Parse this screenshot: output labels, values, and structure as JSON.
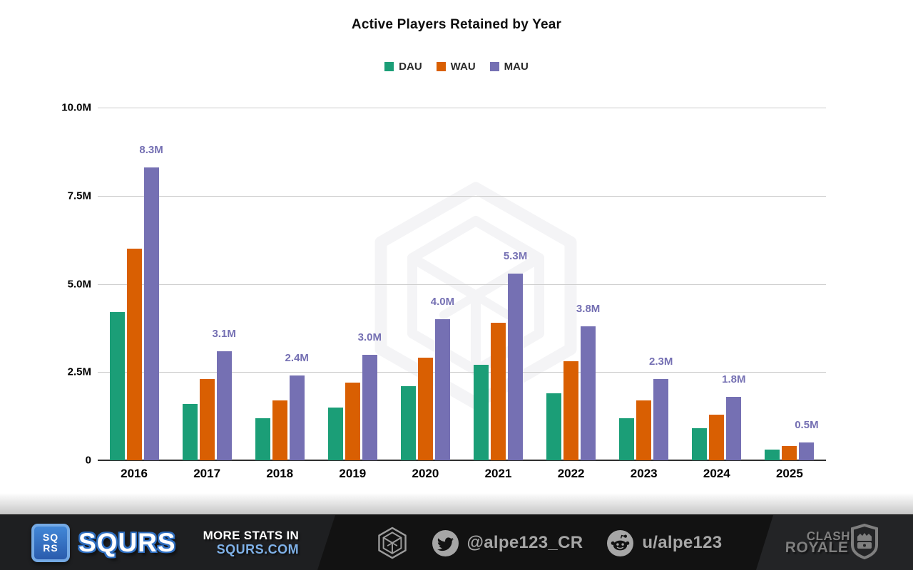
{
  "title": "Active Players Retained by Year",
  "legend": [
    {
      "label": "DAU",
      "color": "#1b9e77"
    },
    {
      "label": "WAU",
      "color": "#d95f02"
    },
    {
      "label": "MAU",
      "color": "#7570b3"
    }
  ],
  "chart_data": {
    "type": "bar",
    "title": "Active Players Retained by Year",
    "categories": [
      "2016",
      "2017",
      "2018",
      "2019",
      "2020",
      "2021",
      "2022",
      "2023",
      "2024",
      "2025"
    ],
    "series": [
      {
        "name": "DAU",
        "color": "#1b9e77",
        "values": [
          4.2,
          1.6,
          1.2,
          1.5,
          2.1,
          2.7,
          1.9,
          1.2,
          0.9,
          0.3
        ]
      },
      {
        "name": "WAU",
        "color": "#d95f02",
        "values": [
          6.0,
          2.3,
          1.7,
          2.2,
          2.9,
          3.9,
          2.8,
          1.7,
          1.3,
          0.4
        ]
      },
      {
        "name": "MAU",
        "color": "#7570b3",
        "values": [
          8.3,
          3.1,
          2.4,
          3.0,
          4.0,
          5.3,
          3.8,
          2.3,
          1.8,
          0.5
        ]
      }
    ],
    "mau_data_labels": [
      "8.3M",
      "3.1M",
      "2.4M",
      "3.0M",
      "4.0M",
      "5.3M",
      "3.8M",
      "2.3M",
      "1.8M",
      "0.5M"
    ],
    "unit": "millions",
    "ylim": [
      0,
      10
    ],
    "y_ticks": [
      {
        "label": "10.0M",
        "value": 10
      },
      {
        "label": "7.5M",
        "value": 7.5
      },
      {
        "label": "5.0M",
        "value": 5
      },
      {
        "label": "2.5M",
        "value": 2.5
      },
      {
        "label": "0",
        "value": 0
      }
    ],
    "grid": true,
    "legend_position": "top",
    "data_label_color": "#7570b3"
  },
  "footer": {
    "squrs_badge_line1": "SQ",
    "squrs_badge_line2": "RS",
    "squrs_wordmark": "SQURS",
    "more_stats_line1": "MORE STATS IN",
    "more_stats_line2": "SQURS.COM",
    "twitter_handle": "@alpe123_CR",
    "reddit_handle": "u/alpe123",
    "clash_line1": "CLASH",
    "clash_line2": "ROYALE"
  },
  "colors": {
    "dau": "#1b9e77",
    "wau": "#d95f02",
    "mau": "#7570b3",
    "gridline": "#cccccc",
    "axis": "#2f2f2f",
    "footer_bg": "#121212",
    "footer_text": "#a6a6a6",
    "squrs_blue": "#2f6fc1",
    "squrs_link_blue": "#7fb1e8",
    "clash_gray": "#7f7f7f"
  }
}
